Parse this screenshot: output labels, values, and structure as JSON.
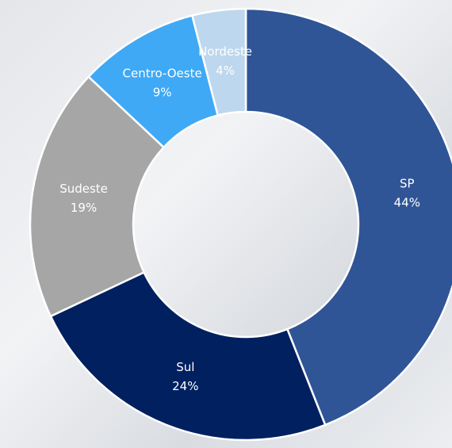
{
  "chart_data": {
    "type": "donut",
    "categories": [
      "SP",
      "Sul",
      "Sudeste",
      "Centro-Oeste",
      "Nordeste"
    ],
    "values": [
      44,
      24,
      19,
      9,
      4
    ],
    "value_labels": [
      "44%",
      "24%",
      "19%",
      "9%",
      "4%"
    ],
    "colors": [
      "#2f5597",
      "#002060",
      "#a6a6a6",
      "#3fa9f5",
      "#bdd7ee"
    ]
  }
}
